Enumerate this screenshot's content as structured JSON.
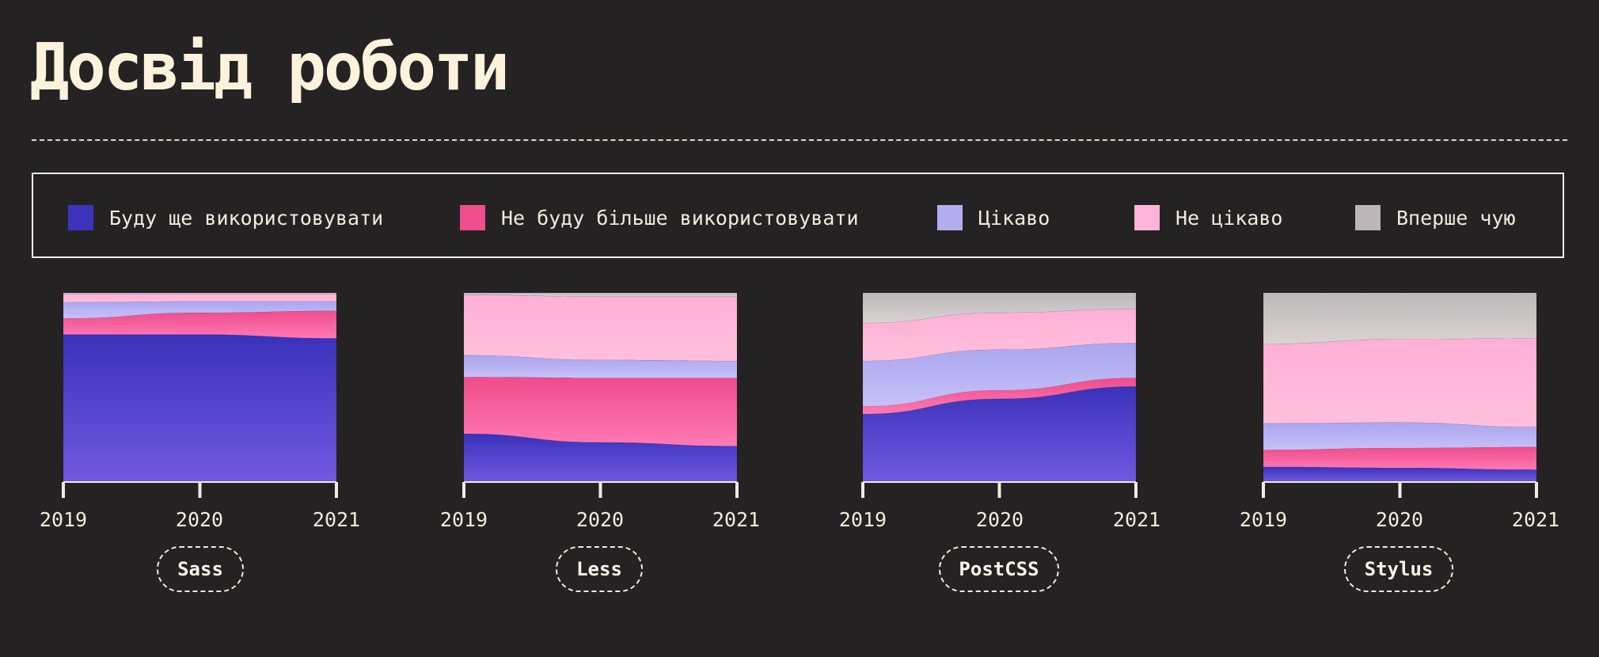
{
  "title": "Досвід роботи",
  "legend": [
    {
      "label": "Буду ще використовувати",
      "color": "#3c33bd"
    },
    {
      "label": "Не буду більше використовувати",
      "color": "#ef4e8c"
    },
    {
      "label": "Цікаво",
      "color": "#b3adf0"
    },
    {
      "label": "Не цікаво",
      "color": "#ffb3d8"
    },
    {
      "label": "Вперше чую",
      "color": "#bcb6b8"
    }
  ],
  "chart_data": [
    {
      "type": "area",
      "stacked": true,
      "title": "Sass",
      "x": [
        "2019",
        "2020",
        "2021"
      ],
      "ylim": [
        0,
        100
      ],
      "series": [
        {
          "name": "Буду ще використовувати",
          "values": [
            78,
            78,
            76
          ]
        },
        {
          "name": "Не буду більше використовувати",
          "values": [
            8.5,
            11.5,
            14.5
          ]
        },
        {
          "name": "Цікаво",
          "values": [
            8.5,
            6,
            5
          ]
        },
        {
          "name": "Не цікаво",
          "values": [
            4.5,
            4,
            4
          ]
        },
        {
          "name": "Вперше чую",
          "values": [
            0.5,
            0.5,
            0.5
          ]
        }
      ]
    },
    {
      "type": "area",
      "stacked": true,
      "title": "Less",
      "x": [
        "2019",
        "2020",
        "2021"
      ],
      "ylim": [
        0,
        100
      ],
      "series": [
        {
          "name": "Буду ще використовувати",
          "values": [
            25.5,
            21,
            19
          ]
        },
        {
          "name": "Не буду більше використовувати",
          "values": [
            30,
            34,
            36
          ]
        },
        {
          "name": "Цікаво",
          "values": [
            11.5,
            9.5,
            9
          ]
        },
        {
          "name": "Не цікаво",
          "values": [
            32,
            33.5,
            34
          ]
        },
        {
          "name": "Вперше чую",
          "values": [
            1,
            2,
            2
          ]
        }
      ]
    },
    {
      "type": "area",
      "stacked": true,
      "title": "PostCSS",
      "x": [
        "2019",
        "2020",
        "2021"
      ],
      "ylim": [
        0,
        100
      ],
      "series": [
        {
          "name": "Буду ще використовувати",
          "values": [
            36,
            44,
            50.5
          ]
        },
        {
          "name": "Не буду більше використовувати",
          "values": [
            4,
            4.5,
            4.5
          ]
        },
        {
          "name": "Цікаво",
          "values": [
            24,
            21.5,
            18.5
          ]
        },
        {
          "name": "Не цікаво",
          "values": [
            20,
            19.5,
            18
          ]
        },
        {
          "name": "Вперше чую",
          "values": [
            16,
            10.5,
            8.5
          ]
        }
      ]
    },
    {
      "type": "area",
      "stacked": true,
      "title": "Stylus",
      "x": [
        "2019",
        "2020",
        "2021"
      ],
      "ylim": [
        0,
        100
      ],
      "series": [
        {
          "name": "Буду ще використовувати",
          "values": [
            8,
            7.5,
            6.5
          ]
        },
        {
          "name": "Не буду більше використовувати",
          "values": [
            9,
            10.5,
            12
          ]
        },
        {
          "name": "Цікаво",
          "values": [
            14,
            13.5,
            10.5
          ]
        },
        {
          "name": "Не цікаво",
          "values": [
            42,
            44,
            47
          ]
        },
        {
          "name": "Вперше чую",
          "values": [
            27,
            24.5,
            24
          ]
        }
      ]
    }
  ]
}
